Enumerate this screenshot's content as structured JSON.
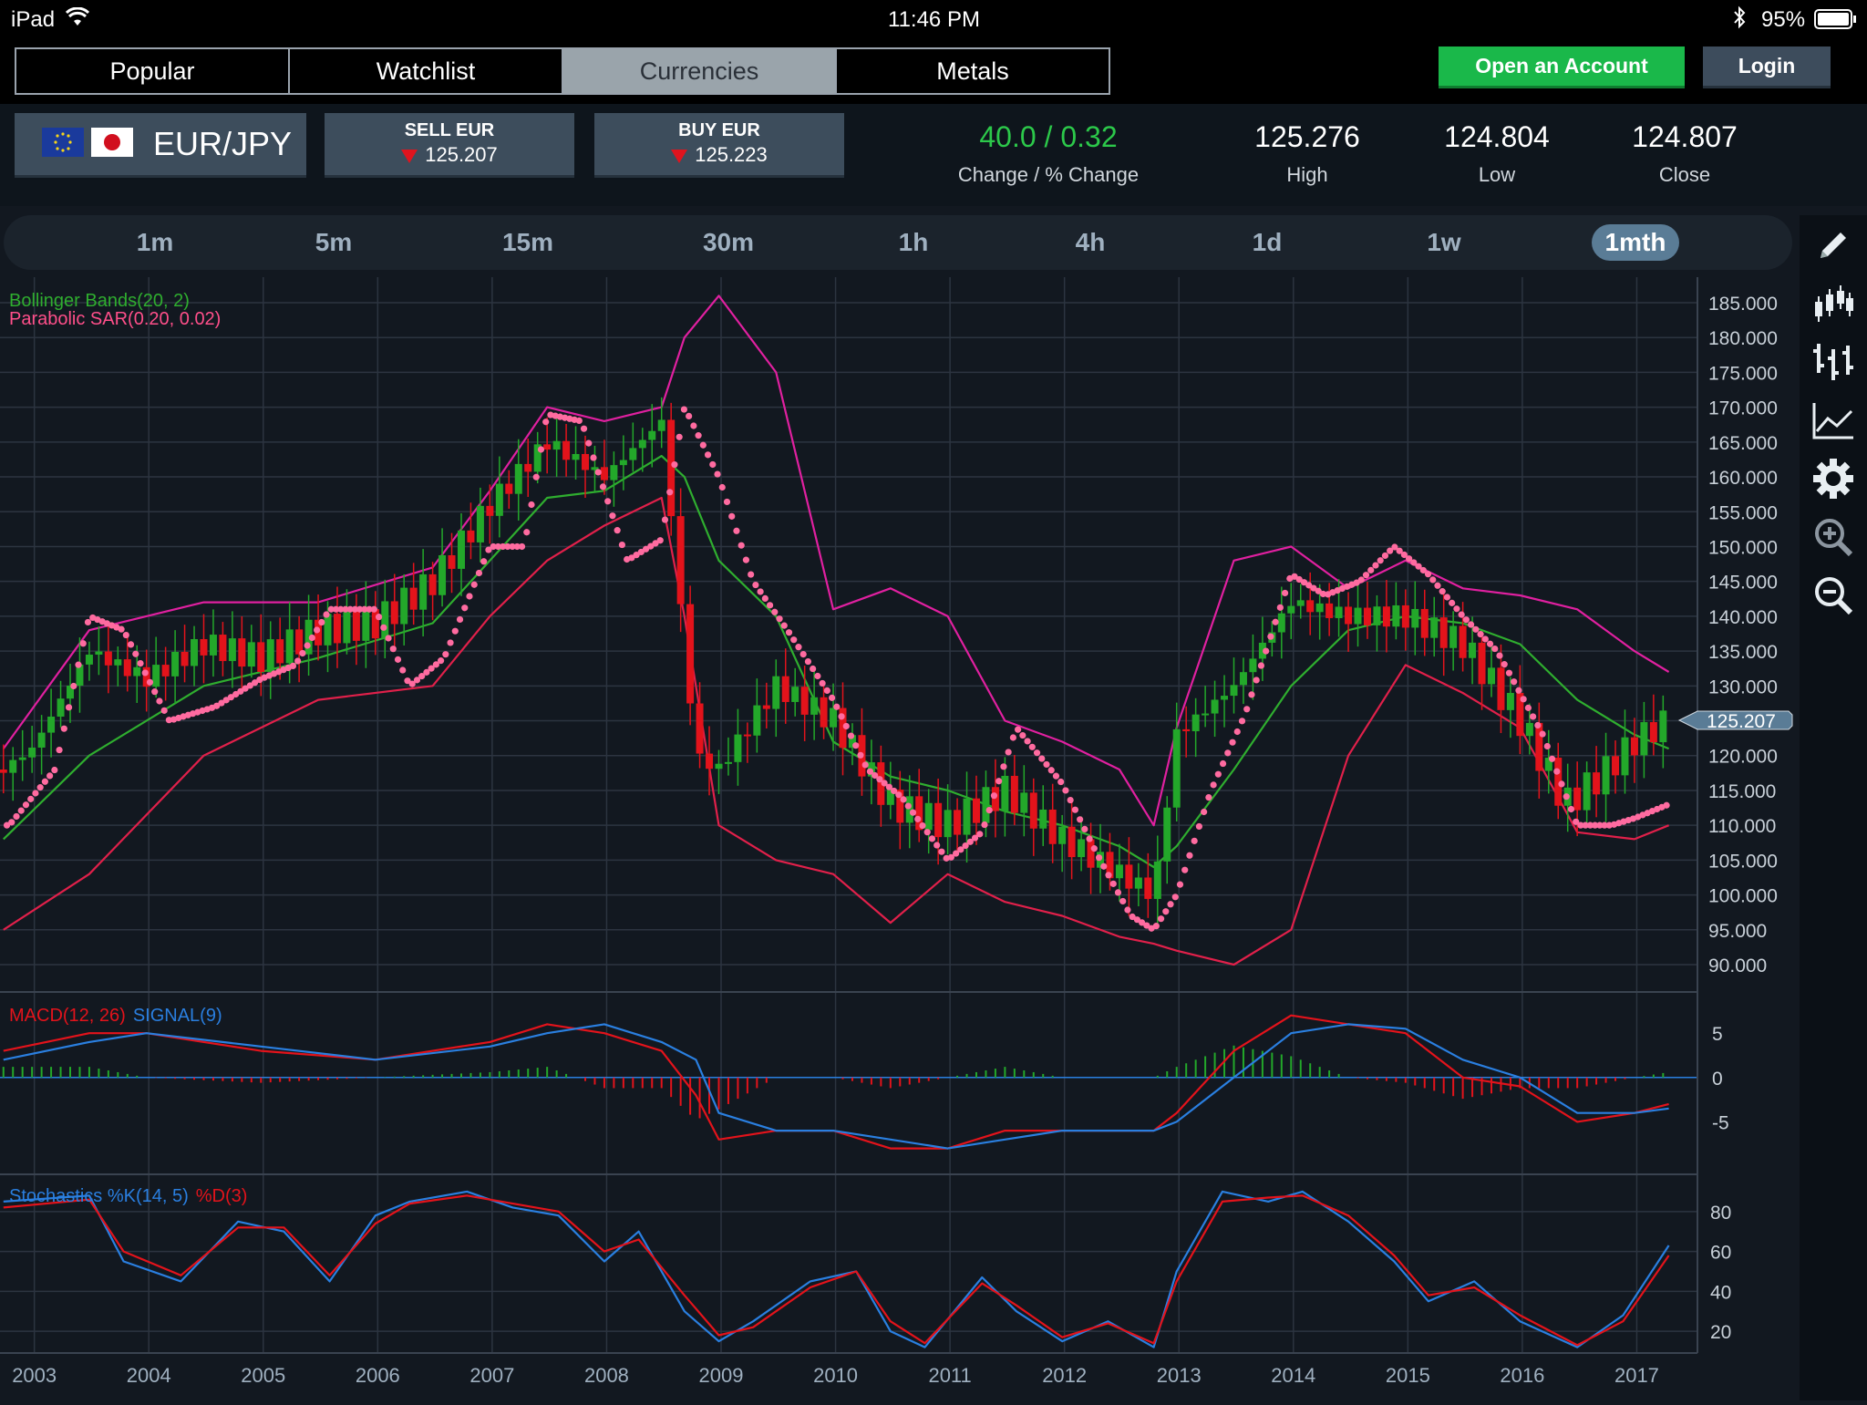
{
  "status_bar": {
    "device": "iPad",
    "time": "11:46 PM",
    "battery": "95%"
  },
  "nav": {
    "tabs": [
      {
        "label": "Popular"
      },
      {
        "label": "Watchlist"
      },
      {
        "label": "Currencies",
        "active": true
      },
      {
        "label": "Metals"
      }
    ],
    "open_account": "Open an Account",
    "login": "Login"
  },
  "instrument": {
    "pair": "EUR/JPY",
    "sell_label": "SELL EUR",
    "sell_price": "125.207",
    "buy_label": "BUY EUR",
    "buy_price": "125.223"
  },
  "stats": {
    "change_value": "40.0 / 0.32",
    "change_label": "Change / % Change",
    "high_value": "125.276",
    "high_label": "High",
    "low_value": "124.804",
    "low_label": "Low",
    "close_value": "124.807",
    "close_label": "Close"
  },
  "timeframes": [
    "1m",
    "5m",
    "15m",
    "30m",
    "1h",
    "4h",
    "1d",
    "1w",
    "1mth"
  ],
  "active_timeframe": "1mth",
  "colors": {
    "up": "#23a82a",
    "down": "#e3131b",
    "upper_band": "#e020a0",
    "lower_band": "#e0204a",
    "mid_band": "#2fae2f",
    "sar": "#ff6ba0",
    "macd": "#e3131b",
    "signal": "#2a7fe0",
    "accent": "#1ab84a"
  },
  "chart_data": [
    {
      "type": "line",
      "title": "EUR/JPY",
      "legend": [
        "Bollinger Bands(20, 2)",
        "Parabolic SAR(0.20, 0.02)"
      ],
      "legend_placement": "top-left",
      "x_ticks": [
        "2003",
        "2004",
        "2005",
        "2006",
        "2007",
        "2008",
        "2009",
        "2010",
        "2011",
        "2012",
        "2013",
        "2014",
        "2015",
        "2016",
        "2017"
      ],
      "y_ticks": [
        "185.000",
        "180.000",
        "175.000",
        "170.000",
        "165.000",
        "160.000",
        "155.000",
        "150.000",
        "145.000",
        "140.000",
        "135.000",
        "130.000",
        "125.000",
        "120.000",
        "115.000",
        "110.000",
        "105.000",
        "100.000",
        "95.000",
        "90.000"
      ],
      "ylim": [
        90,
        185
      ],
      "last_price_label": "125.207",
      "grid": true,
      "series": [
        {
          "name": "Close",
          "x": [
            2002.75,
            2003.0,
            2003.5,
            2004.0,
            2004.5,
            2005.0,
            2005.5,
            2006.0,
            2006.5,
            2007.0,
            2007.5,
            2008.0,
            2008.5,
            2008.8,
            2009.0,
            2009.5,
            2010.0,
            2010.5,
            2011.0,
            2011.5,
            2012.0,
            2012.5,
            2012.8,
            2013.0,
            2013.5,
            2014.0,
            2014.5,
            2015.0,
            2015.5,
            2016.0,
            2016.4,
            2016.7,
            2017.0,
            2017.3
          ],
          "values": [
            118,
            121,
            135,
            131,
            136,
            134,
            138,
            139,
            145,
            156,
            165,
            160,
            168,
            120,
            118,
            130,
            125,
            113,
            110,
            115,
            108,
            103,
            100,
            123,
            130,
            142,
            140,
            140,
            136,
            125,
            113,
            117,
            122,
            125.2
          ]
        },
        {
          "name": "Upper Band",
          "x": [
            2002.75,
            2003.5,
            2004.5,
            2005.5,
            2006.5,
            2007.0,
            2007.5,
            2008.0,
            2008.5,
            2008.7,
            2009.0,
            2009.5,
            2010.0,
            2010.5,
            2011.0,
            2011.5,
            2012.0,
            2012.5,
            2012.8,
            2013.0,
            2013.5,
            2014.0,
            2014.5,
            2015.0,
            2015.5,
            2016.0,
            2016.5,
            2017.0,
            2017.3
          ],
          "values": [
            121,
            138,
            142,
            142,
            147,
            158,
            170,
            168,
            170,
            180,
            186,
            175,
            141,
            144,
            140,
            125,
            122,
            118,
            110,
            124,
            148,
            150,
            144,
            148,
            144,
            143,
            141,
            135,
            132
          ]
        },
        {
          "name": "Lower Band",
          "x": [
            2002.75,
            2003.5,
            2004.5,
            2005.5,
            2006.5,
            2007.0,
            2007.5,
            2008.0,
            2008.5,
            2008.7,
            2009.0,
            2009.5,
            2010.0,
            2010.5,
            2011.0,
            2011.5,
            2012.0,
            2012.5,
            2012.8,
            2013.0,
            2013.5,
            2014.0,
            2014.5,
            2015.0,
            2015.5,
            2016.0,
            2016.5,
            2017.0,
            2017.3
          ],
          "values": [
            95,
            103,
            120,
            128,
            130,
            140,
            148,
            153,
            157,
            140,
            110,
            105,
            103,
            96,
            103,
            99,
            97,
            94,
            93,
            92,
            90,
            95,
            120,
            133,
            129,
            124,
            109,
            108,
            110
          ]
        },
        {
          "name": "Middle Band",
          "x": [
            2002.75,
            2003.5,
            2004.5,
            2005.5,
            2006.5,
            2007.0,
            2007.5,
            2008.0,
            2008.5,
            2008.7,
            2009.0,
            2009.5,
            2010.0,
            2010.5,
            2011.0,
            2011.5,
            2012.0,
            2012.5,
            2012.8,
            2013.0,
            2013.5,
            2014.0,
            2014.5,
            2015.0,
            2015.5,
            2016.0,
            2016.5,
            2017.0,
            2017.3
          ],
          "values": [
            108,
            120,
            130,
            134,
            139,
            148,
            157,
            158,
            163,
            160,
            148,
            140,
            122,
            117,
            115,
            112,
            110,
            107,
            104,
            107,
            118,
            130,
            138,
            140,
            139,
            136,
            128,
            123,
            121
          ]
        },
        {
          "name": "Parabolic SAR",
          "x": [
            2002.8,
            2003.2,
            2003.5,
            2003.8,
            2004.2,
            2004.6,
            2005.0,
            2005.3,
            2005.6,
            2006.0,
            2006.3,
            2006.6,
            2007.0,
            2007.3,
            2007.5,
            2007.8,
            2008.2,
            2008.5,
            2008.7,
            2009.0,
            2009.3,
            2009.6,
            2010.0,
            2010.3,
            2010.6,
            2011.0,
            2011.3,
            2011.6,
            2012.0,
            2012.3,
            2012.6,
            2012.8,
            2013.0,
            2013.3,
            2013.6,
            2014.0,
            2014.3,
            2014.6,
            2014.9,
            2015.2,
            2015.5,
            2015.8,
            2016.2,
            2016.5,
            2016.8,
            2017.0,
            2017.3
          ],
          "values": [
            110,
            118,
            140,
            138,
            125,
            127,
            131,
            133,
            141,
            141,
            130,
            134,
            150,
            150,
            169,
            168,
            148,
            151,
            170,
            160,
            145,
            138,
            128,
            118,
            114,
            105,
            109,
            124,
            116,
            106,
            97,
            95,
            100,
            115,
            126,
            146,
            143,
            145,
            150,
            146,
            140,
            135,
            123,
            110,
            110,
            111,
            113
          ]
        }
      ]
    },
    {
      "type": "line",
      "legend": [
        "MACD(12, 26)",
        "SIGNAL(9)"
      ],
      "y_ticks": [
        "5",
        "0",
        "-5"
      ],
      "ylim": [
        -10,
        8
      ],
      "series": [
        {
          "name": "MACD(12, 26)",
          "x": [
            2002.75,
            2003.5,
            2004.0,
            2005.0,
            2006.0,
            2007.0,
            2007.5,
            2008.0,
            2008.5,
            2008.8,
            2009.0,
            2009.5,
            2010.0,
            2010.5,
            2011.0,
            2011.5,
            2012.0,
            2012.5,
            2012.8,
            2013.0,
            2013.5,
            2014.0,
            2014.5,
            2015.0,
            2015.5,
            2016.0,
            2016.5,
            2017.0,
            2017.3
          ],
          "values": [
            3,
            5,
            5,
            3,
            2,
            4,
            6,
            5,
            3,
            -2,
            -7,
            -6,
            -6,
            -8,
            -8,
            -6,
            -6,
            -6,
            -6,
            -4,
            3,
            7,
            6,
            5,
            0,
            -1,
            -5,
            -4,
            -3
          ]
        },
        {
          "name": "SIGNAL(9)",
          "x": [
            2002.75,
            2003.5,
            2004.0,
            2005.0,
            2006.0,
            2007.0,
            2007.5,
            2008.0,
            2008.5,
            2008.8,
            2009.0,
            2009.5,
            2010.0,
            2010.5,
            2011.0,
            2011.5,
            2012.0,
            2012.5,
            2012.8,
            2013.0,
            2013.5,
            2014.0,
            2014.5,
            2015.0,
            2015.5,
            2016.0,
            2016.5,
            2017.0,
            2017.3
          ],
          "values": [
            2,
            4,
            5,
            3.5,
            2,
            3.5,
            5,
            6,
            4,
            2,
            -4,
            -6,
            -6,
            -7,
            -8,
            -7,
            -6,
            -6,
            -6,
            -5,
            0,
            5,
            6,
            5.5,
            2,
            0,
            -4,
            -4,
            -3.5
          ]
        }
      ]
    },
    {
      "type": "line",
      "legend": [
        "Stochastics %K(14, 5)",
        "%D(3)"
      ],
      "y_ticks": [
        "80",
        "60",
        "40",
        "20"
      ],
      "ylim": [
        10,
        95
      ],
      "series": [
        {
          "name": "Stochastics %K(14, 5)",
          "x": [
            2002.75,
            2003.5,
            2003.8,
            2004.3,
            2004.8,
            2005.2,
            2005.6,
            2006.0,
            2006.3,
            2006.8,
            2007.2,
            2007.6,
            2008.0,
            2008.3,
            2008.7,
            2009.0,
            2009.3,
            2009.8,
            2010.2,
            2010.5,
            2010.8,
            2011.3,
            2011.6,
            2012.0,
            2012.4,
            2012.8,
            2013.0,
            2013.4,
            2013.8,
            2014.1,
            2014.5,
            2014.9,
            2015.2,
            2015.6,
            2016.0,
            2016.5,
            2016.9,
            2017.3
          ],
          "values": [
            85,
            88,
            55,
            45,
            75,
            70,
            45,
            78,
            85,
            90,
            82,
            78,
            55,
            70,
            30,
            15,
            25,
            45,
            50,
            20,
            12,
            47,
            30,
            15,
            25,
            12,
            50,
            90,
            85,
            90,
            75,
            55,
            35,
            45,
            25,
            12,
            28,
            63
          ]
        },
        {
          "name": "%D(3)",
          "x": [
            2002.75,
            2003.5,
            2003.8,
            2004.3,
            2004.8,
            2005.2,
            2005.6,
            2006.0,
            2006.3,
            2006.8,
            2007.2,
            2007.6,
            2008.0,
            2008.3,
            2008.7,
            2009.0,
            2009.3,
            2009.8,
            2010.2,
            2010.5,
            2010.8,
            2011.3,
            2011.6,
            2012.0,
            2012.4,
            2012.8,
            2013.0,
            2013.4,
            2013.8,
            2014.1,
            2014.5,
            2014.9,
            2015.2,
            2015.6,
            2016.0,
            2016.5,
            2016.9,
            2017.3
          ],
          "values": [
            82,
            86,
            60,
            48,
            72,
            72,
            48,
            74,
            84,
            88,
            84,
            80,
            60,
            66,
            38,
            18,
            22,
            42,
            50,
            25,
            14,
            44,
            33,
            17,
            24,
            14,
            45,
            85,
            87,
            88,
            78,
            58,
            38,
            42,
            28,
            13,
            25,
            58
          ]
        }
      ]
    }
  ]
}
